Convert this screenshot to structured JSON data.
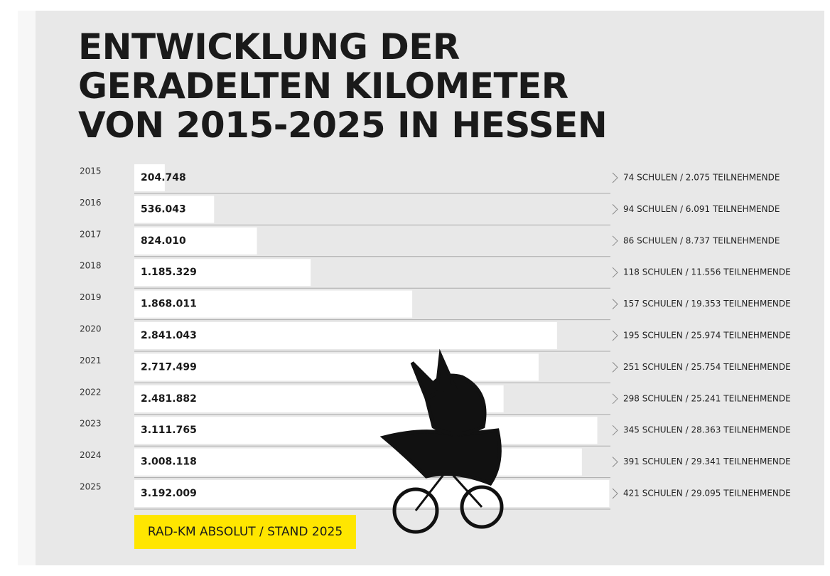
{
  "chart_data": {
    "type": "bar",
    "orientation": "horizontal",
    "title_lines": [
      "ENTWICKLUNG DER",
      "GERADELTEN KILOMETER",
      "VON 2015-2025 IN HESSEN"
    ],
    "categories": [
      "2015",
      "2016",
      "2017",
      "2018",
      "2019",
      "2020",
      "2021",
      "2022",
      "2023",
      "2024",
      "2025"
    ],
    "values": [
      204748,
      536043,
      824010,
      1185329,
      1868011,
      2841043,
      2717499,
      2481882,
      3111765,
      3008118,
      3192009
    ],
    "value_labels": [
      "204.748",
      "536.043",
      "824.010",
      "1.185.329",
      "1.868.011",
      "2.841.043",
      "2.717.499",
      "2.481.882",
      "3.111.765",
      "3.008.118",
      "3.192.009"
    ],
    "annotations": [
      "74 SCHULEN / 2.075 TEILNEHMENDE",
      "94 SCHULEN / 6.091 TEILNEHMENDE",
      "86 SCHULEN / 8.737 TEILNEHMENDE",
      "118 SCHULEN / 11.556 TEILNEHMENDE",
      "157 SCHULEN / 19.353 TEILNEHMENDE",
      "195 SCHULEN / 25.974 TEILNEHMENDE",
      "251 SCHULEN / 25.754 TEILNEHMENDE",
      "298 SCHULEN / 25.241 TEILNEHMENDE",
      "345 SCHULEN / 28.363 TEILNEHMENDE",
      "391 SCHULEN / 29.341 TEILNEHMENDE",
      "421 SCHULEN / 29.095 TEILNEHMENDE"
    ],
    "footer_label": "RAD-KM ABSOLUT / STAND 2025",
    "color": "#ffffff",
    "xlim": [
      0,
      3200000
    ]
  }
}
